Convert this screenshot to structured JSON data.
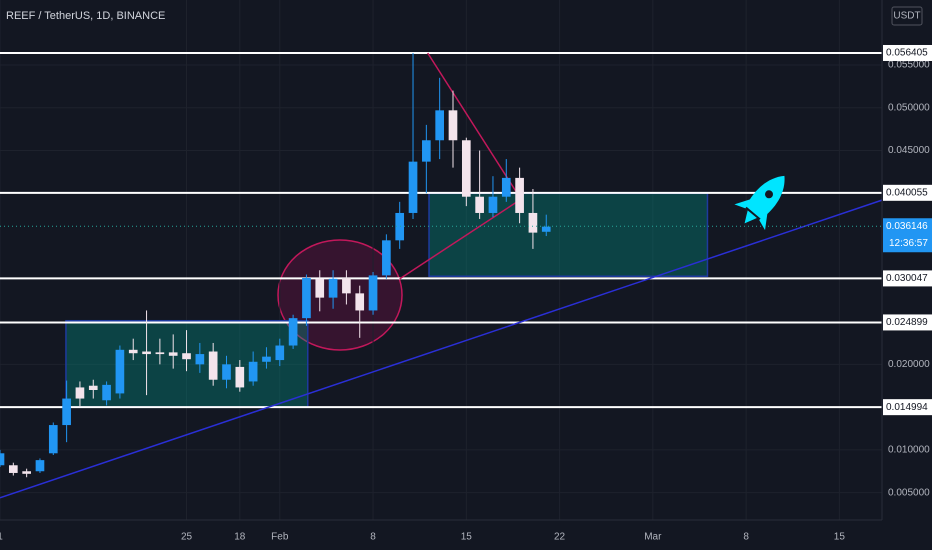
{
  "chart_data": {
    "type": "candlestick",
    "title": "REEF / TetherUS, 1D, BINANCE",
    "currency": "USDT",
    "x": [
      0,
      1,
      2,
      3,
      4,
      5,
      6,
      7,
      8,
      9,
      10,
      11,
      12,
      13,
      14,
      15,
      16,
      17,
      18,
      19,
      20,
      21,
      22,
      23,
      24,
      25,
      26,
      27,
      28,
      29,
      30,
      31,
      32,
      33,
      34,
      35,
      36,
      37,
      38,
      39,
      40,
      41
    ],
    "open": [
      0.0082,
      0.0082,
      0.0075,
      0.0075,
      0.0096,
      0.0129,
      0.0173,
      0.0175,
      0.0158,
      0.0166,
      0.0217,
      0.0215,
      0.0214,
      0.0214,
      0.0213,
      0.02,
      0.0215,
      0.0182,
      0.0197,
      0.018,
      0.0203,
      0.0205,
      0.0222,
      0.0254,
      0.03,
      0.0278,
      0.0301,
      0.0283,
      0.0263,
      0.0304,
      0.0345,
      0.0377,
      0.0437,
      0.0462,
      0.0497,
      0.0462,
      0.0396,
      0.0377,
      0.0396,
      0.0418,
      0.0377,
      0.0355
    ],
    "high": [
      0.01,
      0.0085,
      0.0078,
      0.009,
      0.0132,
      0.0181,
      0.018,
      0.0182,
      0.018,
      0.0222,
      0.023,
      0.0263,
      0.023,
      0.0235,
      0.024,
      0.0225,
      0.0225,
      0.021,
      0.0205,
      0.0215,
      0.022,
      0.023,
      0.0258,
      0.0305,
      0.031,
      0.031,
      0.031,
      0.0292,
      0.0308,
      0.0352,
      0.039,
      0.0564,
      0.048,
      0.0535,
      0.052,
      0.0465,
      0.045,
      0.042,
      0.044,
      0.043,
      0.0405,
      0.0375
    ],
    "low": [
      0.008,
      0.007,
      0.0068,
      0.0073,
      0.0094,
      0.0109,
      0.015,
      0.016,
      0.0152,
      0.016,
      0.0205,
      0.0164,
      0.02,
      0.0195,
      0.0192,
      0.019,
      0.0175,
      0.0172,
      0.0168,
      0.0175,
      0.0195,
      0.0198,
      0.0218,
      0.0245,
      0.0262,
      0.0265,
      0.027,
      0.0231,
      0.0258,
      0.03,
      0.0335,
      0.037,
      0.04,
      0.044,
      0.043,
      0.0385,
      0.037,
      0.0372,
      0.039,
      0.0365,
      0.0335,
      0.035
    ],
    "close": [
      0.0096,
      0.0073,
      0.0072,
      0.0088,
      0.0129,
      0.016,
      0.016,
      0.017,
      0.0176,
      0.0217,
      0.0213,
      0.0212,
      0.0212,
      0.021,
      0.0206,
      0.0212,
      0.0182,
      0.02,
      0.0173,
      0.0203,
      0.0209,
      0.0222,
      0.0254,
      0.0301,
      0.0278,
      0.03,
      0.0283,
      0.0263,
      0.0304,
      0.0345,
      0.0377,
      0.0437,
      0.0462,
      0.0497,
      0.0462,
      0.0396,
      0.0377,
      0.0396,
      0.0418,
      0.0377,
      0.0354,
      0.0361
    ],
    "up_color": "#2196f3",
    "down_color": "#f3e4ec",
    "xlim": [
      0,
      66.2
    ],
    "xticks": [
      {
        "value": 0,
        "label": "1"
      },
      18,
      {
        "value": 14,
        "label": "25"
      },
      {
        "value": 21,
        "label": "Feb"
      },
      {
        "value": 28,
        "label": "8"
      },
      {
        "value": 35,
        "label": "15"
      },
      {
        "value": 42,
        "label": "22"
      },
      {
        "value": 49,
        "label": "Mar"
      },
      {
        "value": 56,
        "label": "8"
      },
      {
        "value": 63,
        "label": "15"
      }
    ],
    "ylim": [
      0.0018,
      0.0626
    ],
    "yticks": [
      {
        "value": 0.005,
        "label": "0.005000"
      },
      {
        "value": 0.01,
        "label": "0.010000"
      },
      {
        "value": 0.02,
        "label": "0.020000"
      },
      {
        "value": 0.045,
        "label": "0.045000"
      },
      {
        "value": 0.05,
        "label": "0.050000"
      },
      {
        "value": 0.055,
        "label": "0.055000"
      }
    ],
    "levels": [
      0.056405,
      0.040055,
      0.030047,
      0.024899,
      0.014994
    ],
    "last_price": 0.036146,
    "countdown": "12:36:57",
    "zones": [
      {
        "x": [
          4.95,
          23.1
        ],
        "y": [
          0.015,
          0.0251
        ]
      },
      {
        "x": [
          32.2,
          53.1
        ],
        "y": [
          0.0303,
          0.04
        ]
      }
    ],
    "trendlines": [
      {
        "x": [
          0,
          66.2
        ],
        "y": [
          0.0044,
          0.0392
        ],
        "color": "#2a2fd6"
      },
      {
        "x": [
          32.1,
          38.9
        ],
        "y": [
          0.0564,
          0.0398
        ],
        "color": "#c2185b"
      },
      {
        "x": [
          30,
          39.1
        ],
        "y": [
          0.03,
          0.0393
        ],
        "color": "#c2185b"
      }
    ]
  }
}
